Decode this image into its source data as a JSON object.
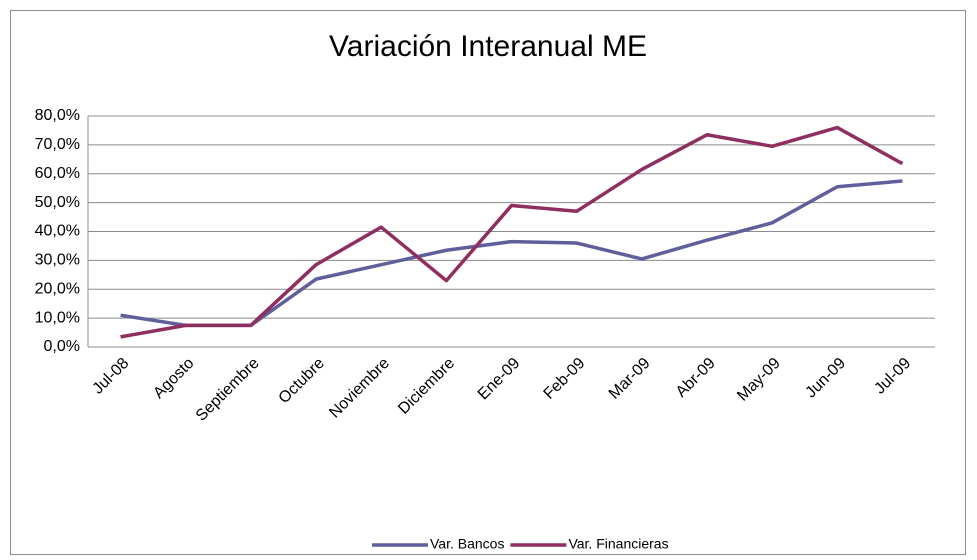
{
  "chart_data": {
    "type": "line",
    "title": "Variación Interanual ME",
    "categories": [
      "Jul-08",
      "Agosto",
      "Septiembre",
      "Octubre",
      "Noviembre",
      "Diciembre",
      "Ene-09",
      "Feb-09",
      "Mar-09",
      "Abr-09",
      "May-09",
      "Jun-09",
      "Jul-09"
    ],
    "series": [
      {
        "name": "Var. Bancos",
        "color": "#5f5f9c",
        "values": [
          11,
          7.5,
          7.5,
          23.5,
          28.5,
          33.5,
          36.5,
          36,
          30.5,
          37,
          43,
          55.5,
          57.5
        ]
      },
      {
        "name": "Var. Financieras",
        "color": "#8e2f5f",
        "values": [
          3.5,
          7.5,
          7.5,
          28.5,
          41.5,
          23,
          49,
          47,
          61.5,
          73.5,
          69.5,
          76,
          63.5
        ]
      }
    ],
    "ylim": [
      0,
      80
    ],
    "yticks": [
      {
        "value": 0,
        "label": "0,0%"
      },
      {
        "value": 10,
        "label": "10,0%"
      },
      {
        "value": 20,
        "label": "20,0%"
      },
      {
        "value": 30,
        "label": "30,0%"
      },
      {
        "value": 40,
        "label": "40,0%"
      },
      {
        "value": 50,
        "label": "50,0%"
      },
      {
        "value": 60,
        "label": "60,0%"
      },
      {
        "value": 70,
        "label": "70,0%"
      },
      {
        "value": 80,
        "label": "80,0%"
      }
    ],
    "grid": true,
    "legend": "bottom"
  }
}
